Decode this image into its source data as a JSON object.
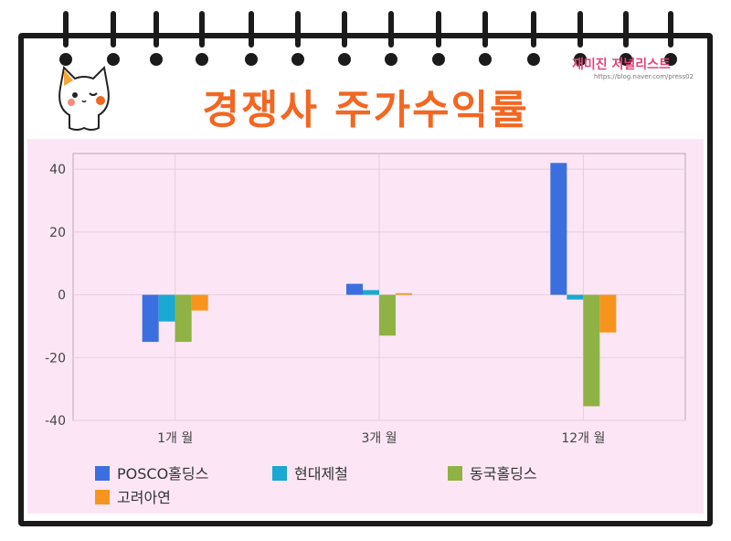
{
  "header": {
    "title": "경쟁사 주가수익률",
    "brand": "재미진 저널리스트",
    "brand_url": "https://blog.naver.com/press02"
  },
  "chart_data": {
    "type": "bar",
    "categories": [
      "1개 월",
      "3개 월",
      "12개 월"
    ],
    "series": [
      {
        "name": "POSCO홀딩스",
        "color": "#3b6fe0",
        "values": [
          -15,
          3.5,
          42
        ]
      },
      {
        "name": "현대제철",
        "color": "#19a9d3",
        "values": [
          -8.5,
          1.5,
          -1.5
        ]
      },
      {
        "name": "동국홀딩스",
        "color": "#8fb244",
        "values": [
          -15,
          -13,
          -35.5
        ]
      },
      {
        "name": "고려아연",
        "color": "#f7941d",
        "values": [
          -5,
          0.5,
          -12
        ]
      }
    ],
    "yticks": [
      "40",
      "20",
      "0",
      "-20",
      "-40"
    ],
    "ylim": [
      -40,
      45
    ],
    "grid": true,
    "legend_position": "bottom"
  }
}
